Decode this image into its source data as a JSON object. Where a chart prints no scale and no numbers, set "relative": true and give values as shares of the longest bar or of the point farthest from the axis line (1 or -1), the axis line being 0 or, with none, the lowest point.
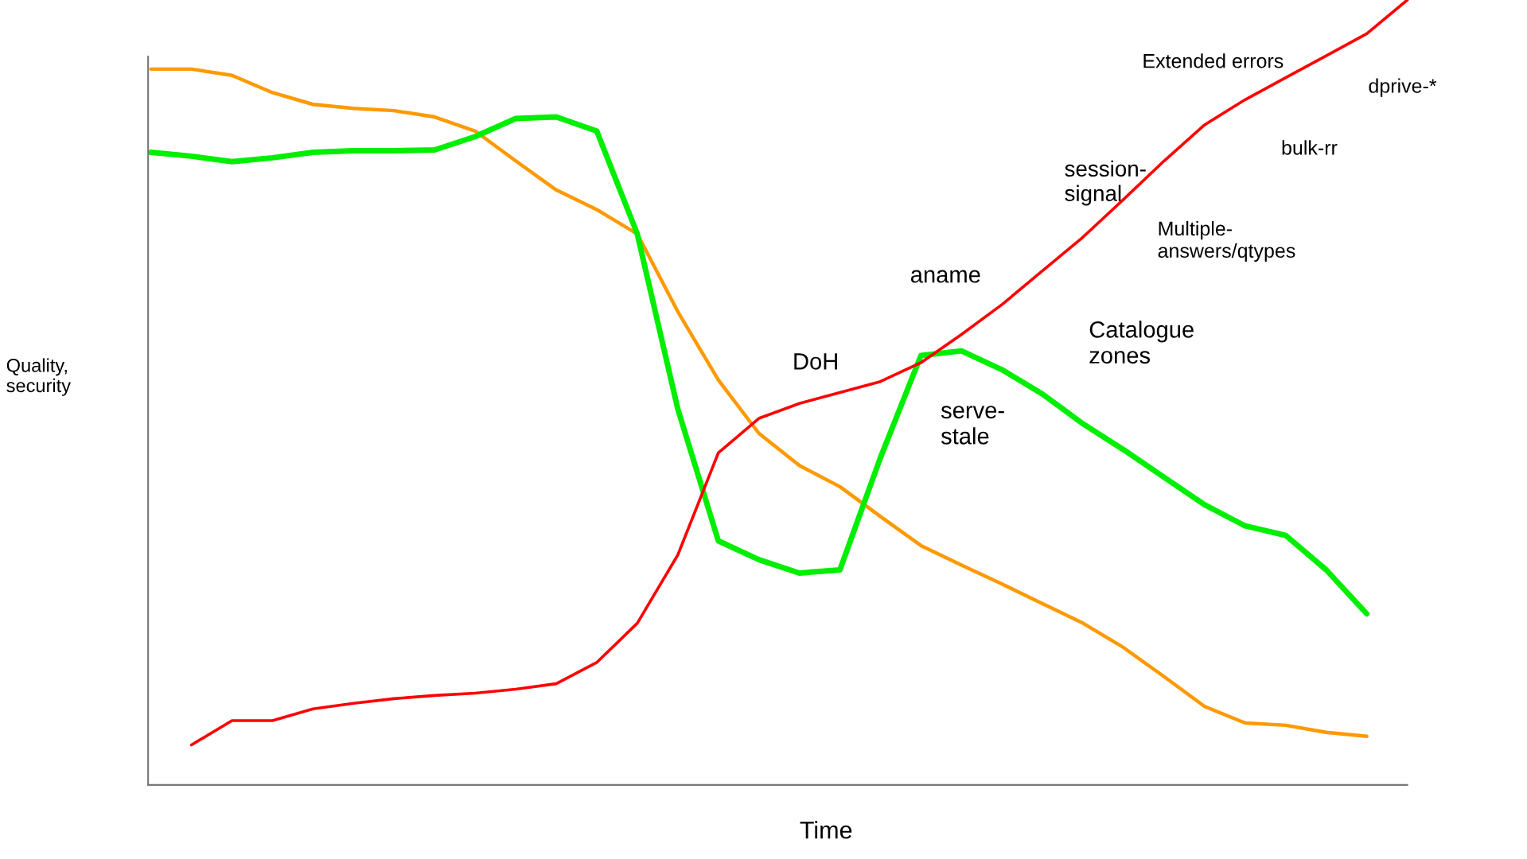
{
  "chart_data": {
    "type": "line",
    "relative": true,
    "xlabel": "Time",
    "ylabel": "Quality,\nsecurity",
    "grid": false,
    "legend": false,
    "marker": "none",
    "line_style": "solid",
    "categories": [
      null,
      null,
      null,
      null,
      null,
      null,
      null,
      null,
      null,
      null,
      null,
      null,
      null,
      null,
      null,
      null,
      null,
      null,
      null,
      null,
      null,
      null,
      null,
      null,
      null,
      null,
      null,
      null,
      null,
      null,
      null,
      null
    ],
    "series": [
      {
        "color": "#ff9900",
        "values": [
          0.912,
          0.912,
          0.904,
          0.882,
          0.867,
          0.862,
          0.859,
          0.851,
          0.833,
          0.795,
          0.758,
          0.733,
          0.702,
          0.603,
          0.516,
          0.448,
          0.407,
          0.38,
          0.342,
          0.305,
          0.28,
          0.256,
          0.231,
          0.206,
          0.175,
          0.138,
          0.1,
          0.079,
          0.076,
          0.067,
          0.062,
          null
        ]
      },
      {
        "color": "#00ee00",
        "values": [
          0.806,
          0.801,
          0.794,
          0.799,
          0.806,
          0.808,
          0.808,
          0.809,
          0.826,
          0.849,
          0.851,
          0.833,
          0.702,
          0.479,
          0.311,
          0.287,
          0.27,
          0.274,
          0.417,
          0.547,
          0.553,
          0.529,
          0.498,
          0.46,
          0.427,
          0.392,
          0.357,
          0.33,
          0.318,
          0.274,
          0.218,
          null
        ]
      },
      {
        "color": "#ff0000",
        "values": [
          null,
          0.051,
          0.082,
          0.082,
          0.097,
          0.104,
          0.11,
          0.114,
          0.117,
          0.122,
          0.129,
          0.156,
          0.206,
          0.293,
          0.423,
          0.467,
          0.486,
          0.5,
          0.514,
          0.538,
          0.574,
          0.612,
          0.655,
          0.698,
          0.746,
          0.795,
          0.841,
          0.873,
          0.901,
          0.929,
          0.957,
          1.0
        ]
      }
    ],
    "annotations": [
      "Extended errors",
      "dprive-*",
      "bulk-rr",
      "session-\nsignal",
      "Multiple-\nanswers/qtypes",
      "aname",
      "Catalogue\nzones",
      "DoH",
      "serve-\nstale"
    ]
  }
}
